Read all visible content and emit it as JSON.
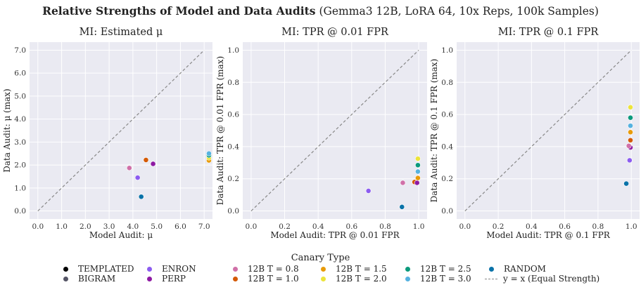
{
  "figure": {
    "title_bold": "Relative Strengths of Model and Data Audits",
    "title_rest": "(Gemma3 12B, LoRA 64, 10x Reps, 100k Samples)"
  },
  "legend": {
    "title": "Canary Type",
    "items": [
      {
        "label": "TEMPLATED",
        "color": "#000000",
        "kind": "marker"
      },
      {
        "label": "BIGRAM",
        "color": "#555566",
        "kind": "marker"
      },
      {
        "label": "ENRON",
        "color": "#8c5cf0",
        "kind": "marker"
      },
      {
        "label": "PERP",
        "color": "#8e1aa3",
        "kind": "marker"
      },
      {
        "label": "12B T = 0.8",
        "color": "#d070a8",
        "kind": "marker"
      },
      {
        "label": "12B T = 1.0",
        "color": "#d45a06",
        "kind": "marker"
      },
      {
        "label": "12B T = 1.5",
        "color": "#e89b0a",
        "kind": "marker"
      },
      {
        "label": "12B T = 2.0",
        "color": "#ece43c",
        "kind": "marker"
      },
      {
        "label": "12B T = 2.5",
        "color": "#0b9a7c",
        "kind": "marker"
      },
      {
        "label": "12B T = 3.0",
        "color": "#56b2e0",
        "kind": "marker"
      },
      {
        "label": "RANDOM",
        "color": "#0a72a8",
        "kind": "marker"
      },
      {
        "label": "y = x (Equal Strength)",
        "color": "#888888",
        "kind": "line"
      }
    ]
  },
  "chart_data": [
    {
      "type": "scatter",
      "title": "MI: Estimated μ",
      "xlabel": "Model Audit: μ",
      "ylabel": "Data Audit: μ (max)",
      "xlim": [
        -0.35,
        7.35
      ],
      "ylim": [
        -0.35,
        7.35
      ],
      "xticks": [
        0.0,
        1.0,
        2.0,
        3.0,
        4.0,
        5.0,
        6.0,
        7.0
      ],
      "yticks": [
        0.0,
        1.0,
        2.0,
        3.0,
        4.0,
        5.0,
        6.0,
        7.0
      ],
      "tick_decimals": 1,
      "diagonal": [
        0,
        7
      ],
      "grid": true,
      "points": [
        {
          "series": "12B T = 0.8",
          "x": 3.85,
          "y": 1.87
        },
        {
          "series": "ENRON",
          "x": 4.2,
          "y": 1.45
        },
        {
          "series": "RANDOM",
          "x": 4.35,
          "y": 0.62
        },
        {
          "series": "12B T = 1.0",
          "x": 4.55,
          "y": 2.22
        },
        {
          "series": "PERP",
          "x": 4.85,
          "y": 2.05
        },
        {
          "series": "12B T = 1.5",
          "x": 7.2,
          "y": 2.2
        },
        {
          "series": "12B T = 2.0",
          "x": 7.2,
          "y": 2.32
        },
        {
          "series": "12B T = 2.5",
          "x": 7.2,
          "y": 2.42
        },
        {
          "series": "12B T = 3.0",
          "x": 7.2,
          "y": 2.5
        }
      ]
    },
    {
      "type": "scatter",
      "title": "MI: TPR @ 0.01 FPR",
      "xlabel": "Model Audit: TPR @ 0.01 FPR",
      "ylabel": "Data Audit: TPR @ 0.01 FPR (max)",
      "xlim": [
        -0.05,
        1.05
      ],
      "ylim": [
        -0.05,
        1.05
      ],
      "xticks": [
        0.0,
        0.2,
        0.4,
        0.6,
        0.8,
        1.0
      ],
      "yticks": [
        0.0,
        0.2,
        0.4,
        0.6,
        0.8,
        1.0
      ],
      "tick_decimals": 1,
      "diagonal": [
        0,
        1
      ],
      "grid": true,
      "points": [
        {
          "series": "ENRON",
          "x": 0.7,
          "y": 0.125
        },
        {
          "series": "RANDOM",
          "x": 0.9,
          "y": 0.025
        },
        {
          "series": "12B T = 0.8",
          "x": 0.905,
          "y": 0.175
        },
        {
          "series": "12B T = 1.0",
          "x": 0.975,
          "y": 0.18
        },
        {
          "series": "PERP",
          "x": 0.99,
          "y": 0.175
        },
        {
          "series": "12B T = 1.5",
          "x": 0.995,
          "y": 0.205
        },
        {
          "series": "12B T = 3.0",
          "x": 0.995,
          "y": 0.245
        },
        {
          "series": "12B T = 2.5",
          "x": 0.995,
          "y": 0.285
        },
        {
          "series": "12B T = 2.0",
          "x": 0.995,
          "y": 0.325
        }
      ]
    },
    {
      "type": "scatter",
      "title": "MI: TPR @ 0.1 FPR",
      "xlabel": "Model Audit: TPR @ 0.1 FPR",
      "ylabel": "Data Audit: TPR @ 0.1 FPR (max)",
      "xlim": [
        -0.05,
        1.05
      ],
      "ylim": [
        -0.05,
        1.05
      ],
      "xticks": [
        0.0,
        0.2,
        0.4,
        0.6,
        0.8,
        1.0
      ],
      "yticks": [
        0.0,
        0.2,
        0.4,
        0.6,
        0.8,
        1.0
      ],
      "tick_decimals": 1,
      "diagonal": [
        0,
        1
      ],
      "grid": true,
      "points": [
        {
          "series": "RANDOM",
          "x": 0.97,
          "y": 0.17
        },
        {
          "series": "ENRON",
          "x": 0.99,
          "y": 0.315
        },
        {
          "series": "PERP",
          "x": 0.995,
          "y": 0.395
        },
        {
          "series": "12B T = 0.8",
          "x": 0.985,
          "y": 0.405
        },
        {
          "series": "12B T = 1.0",
          "x": 0.995,
          "y": 0.44
        },
        {
          "series": "12B T = 1.5",
          "x": 0.995,
          "y": 0.49
        },
        {
          "series": "12B T = 3.0",
          "x": 0.995,
          "y": 0.53
        },
        {
          "series": "12B T = 2.5",
          "x": 0.995,
          "y": 0.58
        },
        {
          "series": "12B T = 2.0",
          "x": 0.995,
          "y": 0.645
        }
      ]
    }
  ]
}
